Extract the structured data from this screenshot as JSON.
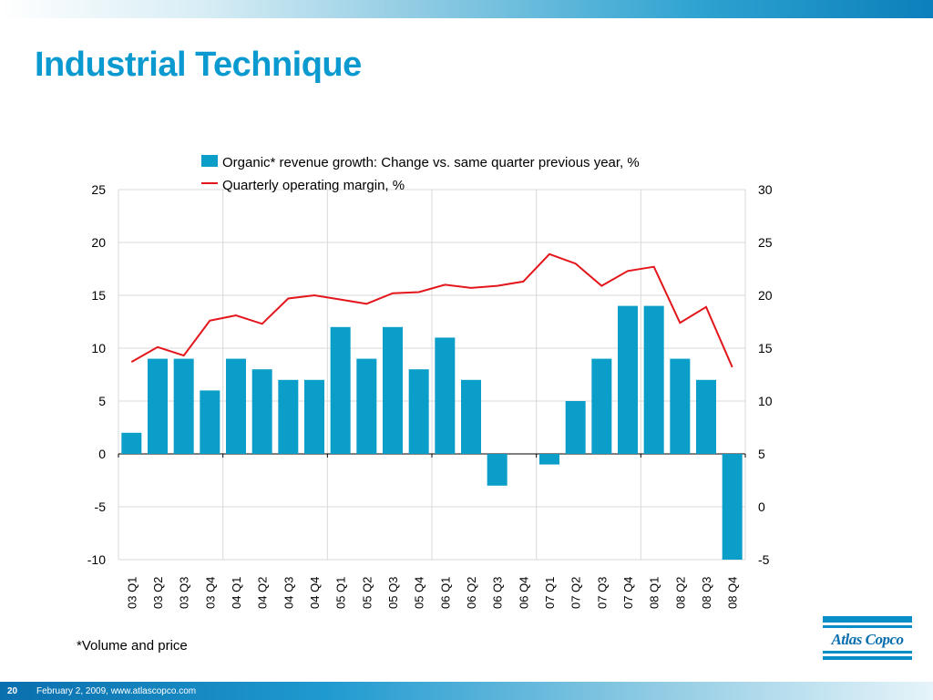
{
  "slide": {
    "title": "Industrial Technique",
    "footnote": "*Volume and price",
    "page_number": "20",
    "footer": "February 2, 2009, www.atlascopco.com",
    "logo_text": "Atlas Copco"
  },
  "colors": {
    "title": "#0a9ad0",
    "bar": "#0a9ec9",
    "line": "#e3161b",
    "grid": "#d9d9d9"
  },
  "chart_data": {
    "type": "bar",
    "categories": [
      "03 Q1",
      "03 Q2",
      "03 Q3",
      "03 Q4",
      "04 Q1",
      "04 Q2",
      "04 Q3",
      "04 Q4",
      "05 Q1",
      "05 Q2",
      "05 Q3",
      "05 Q4",
      "06 Q1",
      "06 Q2",
      "06 Q3",
      "06 Q4",
      "07 Q1",
      "07 Q2",
      "07 Q3",
      "07 Q4",
      "08 Q1",
      "08 Q2",
      "08 Q3",
      "08 Q4"
    ],
    "series": [
      {
        "name": "Organic* revenue growth: Change vs. same quarter previous year, %",
        "type": "bar",
        "axis": "left",
        "values": [
          2,
          9,
          9,
          6,
          9,
          8,
          7,
          7,
          12,
          9,
          12,
          8,
          11,
          7,
          -3,
          0,
          -1,
          5,
          9,
          14,
          14,
          9,
          7,
          -10
        ]
      },
      {
        "name": "Quarterly operating margin, %",
        "type": "line",
        "axis": "right",
        "values": [
          13.7,
          15.1,
          14.3,
          17.6,
          18.1,
          17.3,
          19.7,
          20.0,
          19.6,
          19.2,
          20.2,
          20.3,
          21.0,
          20.7,
          20.9,
          21.3,
          23.9,
          23.0,
          20.9,
          22.3,
          22.7,
          17.4,
          18.9,
          13.2
        ]
      }
    ],
    "y_left": {
      "ylim": [
        -10,
        25
      ],
      "ticks": [
        "-10",
        "-5",
        "0",
        "5",
        "10",
        "15",
        "20",
        "25"
      ]
    },
    "y_right": {
      "ylim": [
        -5,
        30
      ],
      "ticks": [
        "-5",
        "0",
        "5",
        "10",
        "15",
        "20",
        "25",
        "30"
      ]
    },
    "grid": "vertical lines every 4 quarters plus horizontal at each tick",
    "legend_position": "top-center"
  }
}
